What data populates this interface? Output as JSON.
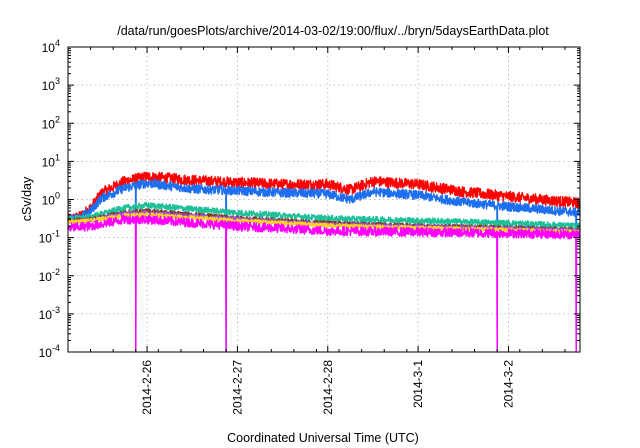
{
  "chart_data": {
    "type": "line",
    "title": "/data/run/goesPlots/archive/2014-03-02/19:00/flux/../bryn/5daysEarthData.plot",
    "xlabel": "Coordinated Universal Time (UTC)",
    "ylabel": "cSv/day",
    "yscale": "log",
    "ylim": [
      0.0001,
      10000
    ],
    "xlim": [
      "2014-02-25T03:00",
      "2014-03-02T19:00"
    ],
    "y_ticks": [
      {
        "base": "10",
        "exp": "-4",
        "value": 0.0001
      },
      {
        "base": "10",
        "exp": "-3",
        "value": 0.001
      },
      {
        "base": "10",
        "exp": "-2",
        "value": 0.01
      },
      {
        "base": "10",
        "exp": "-1",
        "value": 0.1
      },
      {
        "base": "10",
        "exp": "0",
        "value": 1
      },
      {
        "base": "10",
        "exp": "1",
        "value": 10
      },
      {
        "base": "10",
        "exp": "2",
        "value": 100
      },
      {
        "base": "10",
        "exp": "3",
        "value": 1000
      },
      {
        "base": "10",
        "exp": "4",
        "value": 10000
      }
    ],
    "x_ticks": [
      {
        "label": "2014-2-26",
        "x": "2014-02-26T00:00"
      },
      {
        "label": "2014-2-27",
        "x": "2014-02-27T00:00"
      },
      {
        "label": "2014-2-28",
        "x": "2014-02-28T00:00"
      },
      {
        "label": "2014-3-1",
        "x": "2014-03-01T00:00"
      },
      {
        "label": "2014-3-2",
        "x": "2014-03-02T00:00"
      }
    ],
    "grid": true,
    "legend": "none",
    "series": [
      {
        "color": "#ff0000",
        "noise": 0.14,
        "x": [
          "2014-02-25T03:00",
          "2014-02-25T06:00",
          "2014-02-25T09:00",
          "2014-02-25T12:00",
          "2014-02-25T18:00",
          "2014-02-26T00:00",
          "2014-02-26T12:00",
          "2014-02-27T00:00",
          "2014-02-27T12:00",
          "2014-02-28T00:00",
          "2014-02-28T06:00",
          "2014-02-28T12:00",
          "2014-03-01T00:00",
          "2014-03-01T12:00",
          "2014-03-02T00:00",
          "2014-03-02T19:00"
        ],
        "y": [
          0.3,
          0.35,
          0.6,
          1.5,
          3.0,
          4.0,
          3.2,
          2.8,
          2.5,
          2.5,
          1.8,
          3.0,
          2.5,
          1.6,
          1.2,
          0.8
        ]
      },
      {
        "color": "#1e6ff0",
        "noise": 0.12,
        "x": [
          "2014-02-25T03:00",
          "2014-02-25T06:00",
          "2014-02-25T09:00",
          "2014-02-25T12:00",
          "2014-02-25T18:00",
          "2014-02-26T00:00",
          "2014-02-26T12:00",
          "2014-02-27T00:00",
          "2014-02-27T12:00",
          "2014-02-28T00:00",
          "2014-02-28T06:00",
          "2014-02-28T12:00",
          "2014-03-01T00:00",
          "2014-03-01T12:00",
          "2014-03-02T00:00",
          "2014-03-02T19:00"
        ],
        "y": [
          0.3,
          0.32,
          0.5,
          1.1,
          2.0,
          2.7,
          1.9,
          1.7,
          1.5,
          1.4,
          1.0,
          1.6,
          1.3,
          0.85,
          0.65,
          0.45
        ],
        "dips": [
          "2014-02-25T21:00",
          "2014-02-26T21:00",
          "2014-03-01T21:00",
          "2014-03-02T18:00"
        ]
      },
      {
        "color": "#1ec09a",
        "noise": 0.08,
        "x": [
          "2014-02-25T03:00",
          "2014-02-25T09:00",
          "2014-02-25T18:00",
          "2014-02-26T00:00",
          "2014-02-27T00:00",
          "2014-02-28T00:00",
          "2014-03-01T00:00",
          "2014-03-02T00:00",
          "2014-03-02T19:00"
        ],
        "y": [
          0.3,
          0.35,
          0.6,
          0.7,
          0.45,
          0.32,
          0.28,
          0.24,
          0.2
        ]
      },
      {
        "color": "#7a3b1e",
        "noise": 0.06,
        "x": [
          "2014-02-25T03:00",
          "2014-02-25T09:00",
          "2014-02-25T18:00",
          "2014-02-26T00:00",
          "2014-02-27T00:00",
          "2014-02-28T00:00",
          "2014-03-01T00:00",
          "2014-03-02T00:00",
          "2014-03-02T19:00"
        ],
        "y": [
          0.28,
          0.3,
          0.45,
          0.5,
          0.32,
          0.24,
          0.2,
          0.18,
          0.16
        ]
      },
      {
        "color": "#a050e0",
        "noise": 0.06,
        "x": [
          "2014-02-25T03:00",
          "2014-02-25T09:00",
          "2014-02-25T18:00",
          "2014-02-26T00:00",
          "2014-02-27T00:00",
          "2014-02-28T00:00",
          "2014-03-01T00:00",
          "2014-03-02T00:00",
          "2014-03-02T19:00"
        ],
        "y": [
          0.27,
          0.29,
          0.42,
          0.45,
          0.3,
          0.22,
          0.19,
          0.17,
          0.15
        ]
      },
      {
        "color": "#ffd21e",
        "noise": 0.05,
        "x": [
          "2014-02-25T03:00",
          "2014-02-25T09:00",
          "2014-02-25T18:00",
          "2014-02-26T00:00",
          "2014-02-27T00:00",
          "2014-02-28T00:00",
          "2014-03-01T00:00",
          "2014-03-02T00:00",
          "2014-03-02T19:00"
        ],
        "y": [
          0.26,
          0.28,
          0.38,
          0.4,
          0.28,
          0.21,
          0.18,
          0.16,
          0.14
        ]
      },
      {
        "color": "#ff00ff",
        "noise": 0.12,
        "x": [
          "2014-02-25T03:00",
          "2014-02-25T09:00",
          "2014-02-25T18:00",
          "2014-02-26T00:00",
          "2014-02-27T00:00",
          "2014-02-28T00:00",
          "2014-03-01T00:00",
          "2014-03-02T00:00",
          "2014-03-02T19:00"
        ],
        "y": [
          0.18,
          0.2,
          0.3,
          0.3,
          0.2,
          0.15,
          0.14,
          0.13,
          0.12
        ],
        "dips": [
          "2014-02-25T21:00",
          "2014-02-26T21:00",
          "2014-03-01T21:00",
          "2014-03-02T18:00"
        ]
      }
    ]
  }
}
